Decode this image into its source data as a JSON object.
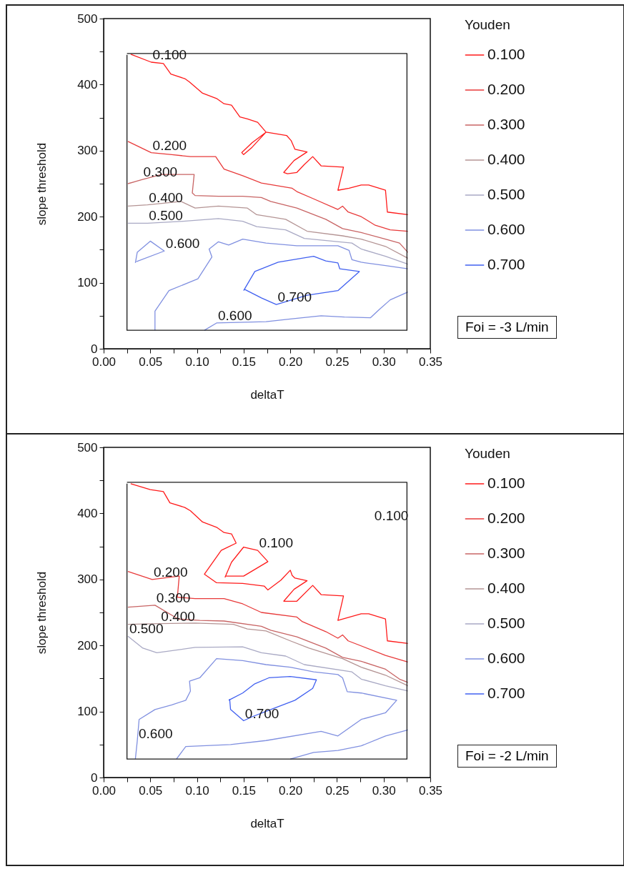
{
  "chart_data": [
    {
      "type": "line",
      "xlabel": "deltaT",
      "ylabel": "slope threshold",
      "legend_title": "Youden",
      "legend": "right",
      "grid": false,
      "xlim": [
        0,
        0.35
      ],
      "ylim": [
        0,
        500
      ],
      "xticks": [
        {
          "value": 0,
          "label": "0.00"
        },
        {
          "value": 0.025,
          "label": null
        },
        {
          "value": 0.05,
          "label": "0.05"
        },
        {
          "value": 0.075,
          "label": null
        },
        {
          "value": 0.1,
          "label": "0.10"
        },
        {
          "value": 0.125,
          "label": null
        },
        {
          "value": 0.15,
          "label": "0.15"
        },
        {
          "value": 0.175,
          "label": null
        },
        {
          "value": 0.2,
          "label": "0.20"
        },
        {
          "value": 0.225,
          "label": null
        },
        {
          "value": 0.25,
          "label": "0.25"
        },
        {
          "value": 0.275,
          "label": null
        },
        {
          "value": 0.3,
          "label": "0.30"
        },
        {
          "value": 0.325,
          "label": null
        },
        {
          "value": 0.35,
          "label": "0.35"
        }
      ],
      "yticks": [
        0,
        {
          "value": 50,
          "label": null
        },
        100,
        {
          "value": 150,
          "label": null
        },
        200,
        {
          "value": 250,
          "label": null
        },
        300,
        {
          "value": 350,
          "label": null
        },
        400,
        {
          "value": 450,
          "label": null
        },
        500
      ],
      "series": [
        {
          "name": "0.100",
          "color": "#ff1a1a",
          "x": [
            0.029,
            0.051,
            0.064,
            0.072,
            0.087,
            0.092,
            0.106,
            0.121,
            0.129,
            0.137,
            0.146,
            0.154,
            0.165,
            0.174,
            0.159,
            0.148,
            0.15,
            0.159,
            0.174,
            0.196,
            0.201,
            0.205,
            0.218,
            0.204,
            0.193,
            0.197,
            0.207,
            0.215,
            0.224,
            0.233,
            0.257,
            0.251,
            0.263,
            0.276,
            0.284,
            0.302,
            0.304,
            0.326
          ],
          "values": [
            446,
            434,
            432,
            416,
            409,
            404,
            387,
            379,
            371,
            369,
            351,
            348,
            343,
            328,
            312,
            297,
            294,
            305,
            328,
            323,
            315,
            302,
            298,
            285,
            267,
            265,
            267,
            279,
            291,
            277,
            275,
            240,
            243,
            248,
            248,
            240,
            207,
            203
          ]
        },
        {
          "name": "0.200",
          "color": "#e83a3a",
          "x": [
            0.026,
            0.051,
            0.073,
            0.093,
            0.12,
            0.129,
            0.149,
            0.169,
            0.202,
            0.207,
            0.225,
            0.251,
            0.256,
            0.262,
            0.276,
            0.291,
            0.307,
            0.326
          ],
          "values": [
            314,
            297,
            294,
            291,
            291,
            272,
            262,
            251,
            243,
            238,
            227,
            211,
            216,
            207,
            200,
            187,
            180,
            178
          ]
        },
        {
          "name": "0.300",
          "color": "#c86464",
          "x": [
            0.026,
            0.041,
            0.062,
            0.097,
            0.095,
            0.098,
            0.123,
            0.149,
            0.169,
            0.179,
            0.207,
            0.238,
            0.256,
            0.276,
            0.302,
            0.317,
            0.326
          ],
          "values": [
            250,
            256,
            264,
            264,
            236,
            232,
            231,
            231,
            229,
            223,
            213,
            196,
            182,
            176,
            166,
            160,
            146
          ]
        },
        {
          "name": "0.400",
          "color": "#b49494",
          "x": [
            0.026,
            0.047,
            0.083,
            0.098,
            0.123,
            0.154,
            0.164,
            0.195,
            0.218,
            0.256,
            0.276,
            0.302,
            0.326
          ],
          "values": [
            216,
            218,
            223,
            213,
            216,
            213,
            203,
            196,
            178,
            171,
            166,
            155,
            137
          ]
        },
        {
          "name": "0.500",
          "color": "#a9a9c4",
          "x": [
            0.026,
            0.047,
            0.085,
            0.123,
            0.149,
            0.164,
            0.195,
            0.215,
            0.266,
            0.276,
            0.302,
            0.326
          ],
          "values": [
            190,
            190,
            193,
            197,
            193,
            185,
            180,
            167,
            160,
            151,
            140,
            128
          ]
        },
        {
          "name": "0.600",
          "color": "#8090e0",
          "x": [
            0.034,
            0.036,
            0.05,
            0.065,
            0.035,
            null,
            0.055,
            0.055,
            0.07,
            0.101,
            0.116,
            0.113,
            0.123,
            0.134,
            0.149,
            0.174,
            0.207,
            0.251,
            0.263,
            0.266,
            0.276,
            0.302,
            0.326,
            null,
            0.108,
            0.121,
            0.174,
            0.2,
            0.233,
            0.258,
            0.286,
            0.295,
            0.307,
            0.326
          ],
          "values": [
            130,
            146,
            163,
            148,
            132,
            null,
            28,
            57,
            88,
            106,
            139,
            151,
            162,
            157,
            166,
            160,
            156,
            156,
            149,
            135,
            131,
            126,
            121,
            null,
            28,
            39,
            41,
            45,
            50,
            48,
            47,
            59,
            74,
            86
          ]
        },
        {
          "name": "0.700",
          "color": "#4060f0",
          "x": [
            0.15,
            0.162,
            0.187,
            0.225,
            0.238,
            0.251,
            0.253,
            0.274,
            0.251,
            0.218,
            0.185,
            0.169,
            0.151
          ],
          "values": [
            88,
            117,
            131,
            140,
            133,
            130,
            121,
            117,
            88,
            81,
            67,
            77,
            90
          ]
        },
        {
          "color": "#1a1a1a",
          "x": [
            0.025,
            0.325,
            0.325,
            0.025,
            0.025
          ],
          "values": [
            447,
            447,
            28,
            28,
            445
          ]
        }
      ],
      "annotations": [
        {
          "text": "0.100",
          "x": 0.051,
          "y": 434
        },
        {
          "text": "0.200",
          "x": 0.051,
          "y": 297
        },
        {
          "text": "0.300",
          "x": 0.041,
          "y": 256
        },
        {
          "text": "0.400",
          "x": 0.047,
          "y": 218
        },
        {
          "text": "0.500",
          "x": 0.047,
          "y": 190
        },
        {
          "text": "0.600",
          "x": 0.065,
          "y": 148
        },
        {
          "text": "0.700",
          "x": 0.185,
          "y": 67
        },
        {
          "text": "0.600",
          "x": 0.121,
          "y": 39
        },
        "Foi = -3 L/min"
      ]
    },
    {
      "type": "line",
      "xlabel": "deltaT",
      "ylabel": "slope threshold",
      "legend_title": "Youden",
      "legend": "right",
      "grid": false,
      "xlim": [
        0,
        0.35
      ],
      "ylim": [
        0,
        500
      ],
      "xticks": [
        {
          "value": 0,
          "label": "0.00"
        },
        {
          "value": 0.025,
          "label": null
        },
        {
          "value": 0.05,
          "label": "0.05"
        },
        {
          "value": 0.075,
          "label": null
        },
        {
          "value": 0.1,
          "label": "0.10"
        },
        {
          "value": 0.125,
          "label": null
        },
        {
          "value": 0.15,
          "label": "0.15"
        },
        {
          "value": 0.175,
          "label": null
        },
        {
          "value": 0.2,
          "label": "0.20"
        },
        {
          "value": 0.225,
          "label": null
        },
        {
          "value": 0.25,
          "label": "0.25"
        },
        {
          "value": 0.275,
          "label": null
        },
        {
          "value": 0.3,
          "label": "0.30"
        },
        {
          "value": 0.325,
          "label": null
        },
        {
          "value": 0.35,
          "label": "0.35"
        }
      ],
      "yticks": [
        0,
        {
          "value": 50,
          "label": null
        },
        100,
        {
          "value": 150,
          "label": null
        },
        200,
        {
          "value": 250,
          "label": null
        },
        300,
        {
          "value": 350,
          "label": null
        },
        400,
        {
          "value": 450,
          "label": null
        },
        500
      ],
      "series": [
        {
          "name": "0.100",
          "color": "#ff1a1a",
          "x": [
            0.029,
            0.05,
            0.064,
            0.071,
            0.087,
            0.093,
            0.106,
            0.121,
            0.129,
            0.137,
            0.142,
            0.126,
            0.108,
            0.121,
            0.149,
            0.172,
            0.176,
            0.19,
            0.2,
            0.202,
            0.205,
            0.218,
            0.204,
            0.193,
            0.207,
            0.224,
            0.233,
            0.257,
            0.251,
            0.276,
            0.284,
            0.302,
            0.304,
            0.326,
            null,
            0.13,
            0.137,
            0.15,
            0.165,
            0.176,
            0.15,
            0.131
          ],
          "values": [
            445,
            436,
            433,
            416,
            409,
            404,
            387,
            379,
            371,
            369,
            355,
            344,
            308,
            295,
            294,
            290,
            284,
            299,
            314,
            306,
            302,
            298,
            285,
            267,
            267,
            291,
            277,
            275,
            238,
            248,
            248,
            240,
            207,
            203,
            null,
            303,
            326,
            349,
            344,
            327,
            305,
            305
          ]
        },
        {
          "name": "0.200",
          "color": "#e83a3a",
          "x": [
            0.026,
            0.052,
            0.081,
            0.079,
            0.098,
            0.129,
            0.149,
            0.169,
            0.207,
            0.213,
            0.238,
            0.251,
            0.256,
            0.262,
            0.302,
            0.326
          ],
          "values": [
            312,
            300,
            305,
            273,
            271,
            271,
            263,
            250,
            243,
            236,
            221,
            211,
            216,
            207,
            185,
            175
          ]
        },
        {
          "name": "0.300",
          "color": "#c86464",
          "x": [
            0.026,
            0.055,
            0.08,
            0.103,
            0.129,
            0.169,
            0.179,
            0.207,
            0.238,
            0.256,
            0.276,
            0.302,
            0.317,
            0.326
          ],
          "values": [
            258,
            261,
            240,
            238,
            237,
            229,
            223,
            213,
            196,
            182,
            176,
            164,
            149,
            144
          ]
        },
        {
          "name": "0.400",
          "color": "#b49494",
          "x": [
            0.026,
            0.06,
            0.098,
            0.139,
            0.154,
            0.174,
            0.2,
            0.22,
            0.256,
            0.276,
            0.302,
            0.326
          ],
          "values": [
            232,
            233,
            234,
            232,
            225,
            222,
            207,
            196,
            180,
            167,
            155,
            139
          ]
        },
        {
          "name": "0.500",
          "color": "#a9a9c4",
          "x": [
            0.026,
            0.042,
            0.057,
            0.098,
            0.149,
            0.169,
            0.195,
            0.215,
            0.266,
            0.276,
            0.302,
            0.326
          ],
          "values": [
            214,
            196,
            189,
            197,
            198,
            189,
            184,
            171,
            160,
            149,
            139,
            131
          ]
        },
        {
          "name": "0.600",
          "color": "#8090e0",
          "x": [
            0.034,
            0.036,
            0.038,
            0.055,
            0.073,
            0.088,
            0.093,
            0.092,
            0.103,
            0.121,
            0.149,
            0.174,
            0.2,
            0.225,
            0.251,
            0.256,
            0.261,
            0.276,
            0.314,
            0.302,
            0.276,
            0.251,
            0.233,
            0.174,
            0.136,
            0.088,
            0.078,
            null,
            0.2,
            0.225,
            0.251,
            0.276,
            0.302,
            0.326
          ],
          "values": [
            28,
            55,
            88,
            103,
            110,
            117,
            131,
            146,
            151,
            180,
            177,
            171,
            167,
            160,
            156,
            151,
            130,
            128,
            117,
            98,
            88,
            63,
            70,
            56,
            50,
            47,
            28,
            null,
            28,
            38,
            41,
            48,
            63,
            72
          ]
        },
        {
          "name": "0.700",
          "color": "#4060f0",
          "x": [
            0.134,
            0.149,
            0.162,
            0.177,
            0.2,
            0.228,
            0.224,
            0.205,
            0.179,
            0.159,
            0.15,
            0.136,
            0.135
          ],
          "values": [
            117,
            128,
            142,
            151,
            153,
            148,
            135,
            117,
            103,
            92,
            86,
            103,
            119
          ]
        },
        {
          "color": "#1a1a1a",
          "x": [
            0.025,
            0.325,
            0.325,
            0.025,
            0.025
          ],
          "values": [
            447,
            447,
            28,
            28,
            445
          ]
        }
      ],
      "annotations": [
        {
          "text": "0.100",
          "x": 0.325,
          "y": 385
        },
        {
          "text": "0.100",
          "x": 0.165,
          "y": 344
        },
        {
          "text": "0.200",
          "x": 0.052,
          "y": 300
        },
        {
          "text": "0.300",
          "x": 0.055,
          "y": 261
        },
        {
          "text": "0.400",
          "x": 0.06,
          "y": 233
        },
        {
          "text": "0.500",
          "x": 0.026,
          "y": 214
        },
        {
          "text": "0.700",
          "x": 0.15,
          "y": 86
        },
        {
          "text": "0.600",
          "x": 0.036,
          "y": 55
        },
        "Foi = -2 L/min"
      ]
    }
  ]
}
